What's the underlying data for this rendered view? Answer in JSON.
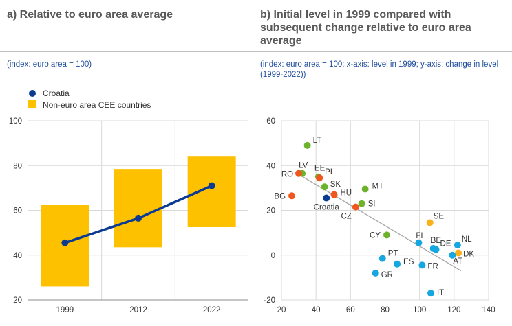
{
  "panel_a": {
    "title": "a) Relative to euro area average",
    "subtitle": "(index: euro area = 100)"
  },
  "panel_b": {
    "title": "b) Initial level in 1999 compared with subsequent change relative to euro area average",
    "subtitle": "(index: euro area = 100; x-axis: level in 1999; y-axis: change in level (1999-2022))"
  },
  "colors": {
    "croatia": "#0b3a93",
    "cee_range": "#fdc100",
    "green": "#6cb22b",
    "red": "#f0561d",
    "orange": "#f9b11a",
    "blue": "#16a7e0",
    "fit_line": "#a6a6a6",
    "grid": "#d9d9d9"
  },
  "chart_data": [
    {
      "type": "bar",
      "categories": [
        "1999",
        "2012",
        "2022"
      ],
      "ylim": [
        20,
        100
      ],
      "yticks": [
        20,
        40,
        60,
        80,
        100
      ],
      "legend": [
        "Croatia",
        "Non-euro area CEE countries"
      ],
      "legend_position": "top-left",
      "grid": "horizontal",
      "series": [
        {
          "name": "Non-euro area CEE countries",
          "kind": "range-bar",
          "low": [
            26,
            43.5,
            52.5
          ],
          "high": [
            62.5,
            78.5,
            84
          ]
        },
        {
          "name": "Croatia",
          "kind": "line",
          "values": [
            45.5,
            56.5,
            71
          ]
        }
      ]
    },
    {
      "type": "scatter",
      "xlim": [
        20,
        140
      ],
      "ylim": [
        -20,
        60
      ],
      "xticks": [
        20,
        40,
        60,
        80,
        100,
        120,
        140
      ],
      "yticks": [
        -20,
        0,
        20,
        40,
        60
      ],
      "grid": "both",
      "points": [
        {
          "label": "LT",
          "x": 35,
          "y": 49,
          "color": "green"
        },
        {
          "label": "LV",
          "x": 32,
          "y": 36.5,
          "color": "green"
        },
        {
          "label": "EE",
          "x": 41.5,
          "y": 35,
          "color": "green"
        },
        {
          "label": "PL",
          "x": 42,
          "y": 34.5,
          "color": "red"
        },
        {
          "label": "RO",
          "x": 30,
          "y": 36.5,
          "color": "red"
        },
        {
          "label": "SK",
          "x": 45,
          "y": 30.5,
          "color": "green"
        },
        {
          "label": "MT",
          "x": 68.5,
          "y": 29.5,
          "color": "green"
        },
        {
          "label": "HU",
          "x": 50.5,
          "y": 27,
          "color": "red"
        },
        {
          "label": "BG",
          "x": 26,
          "y": 26.5,
          "color": "red"
        },
        {
          "label": "Croatia",
          "x": 46,
          "y": 25.5,
          "color": "croatia"
        },
        {
          "label": "SI",
          "x": 66.5,
          "y": 23,
          "color": "green"
        },
        {
          "label": "CZ",
          "x": 63,
          "y": 21.5,
          "color": "red"
        },
        {
          "label": "SE",
          "x": 106,
          "y": 14.5,
          "color": "orange"
        },
        {
          "label": "CY",
          "x": 81,
          "y": 9,
          "color": "green"
        },
        {
          "label": "FI",
          "x": 99.5,
          "y": 5.5,
          "color": "blue"
        },
        {
          "label": "BE",
          "x": 108,
          "y": 3,
          "color": "blue"
        },
        {
          "label": "DE",
          "x": 109.5,
          "y": 2.5,
          "color": "blue"
        },
        {
          "label": "NL",
          "x": 122,
          "y": 4.5,
          "color": "blue"
        },
        {
          "label": "DK",
          "x": 122.5,
          "y": 1,
          "color": "orange"
        },
        {
          "label": "AT",
          "x": 119,
          "y": 0,
          "color": "blue"
        },
        {
          "label": "PT",
          "x": 78.5,
          "y": -1.5,
          "color": "blue"
        },
        {
          "label": "ES",
          "x": 87,
          "y": -4,
          "color": "blue"
        },
        {
          "label": "FR",
          "x": 101.5,
          "y": -4.5,
          "color": "blue"
        },
        {
          "label": "GR",
          "x": 74.5,
          "y": -8,
          "color": "blue"
        },
        {
          "label": "IT",
          "x": 106.5,
          "y": -17,
          "color": "blue"
        }
      ],
      "trend_line": {
        "x": [
          28,
          124
        ],
        "y": [
          37,
          -7
        ]
      }
    }
  ]
}
